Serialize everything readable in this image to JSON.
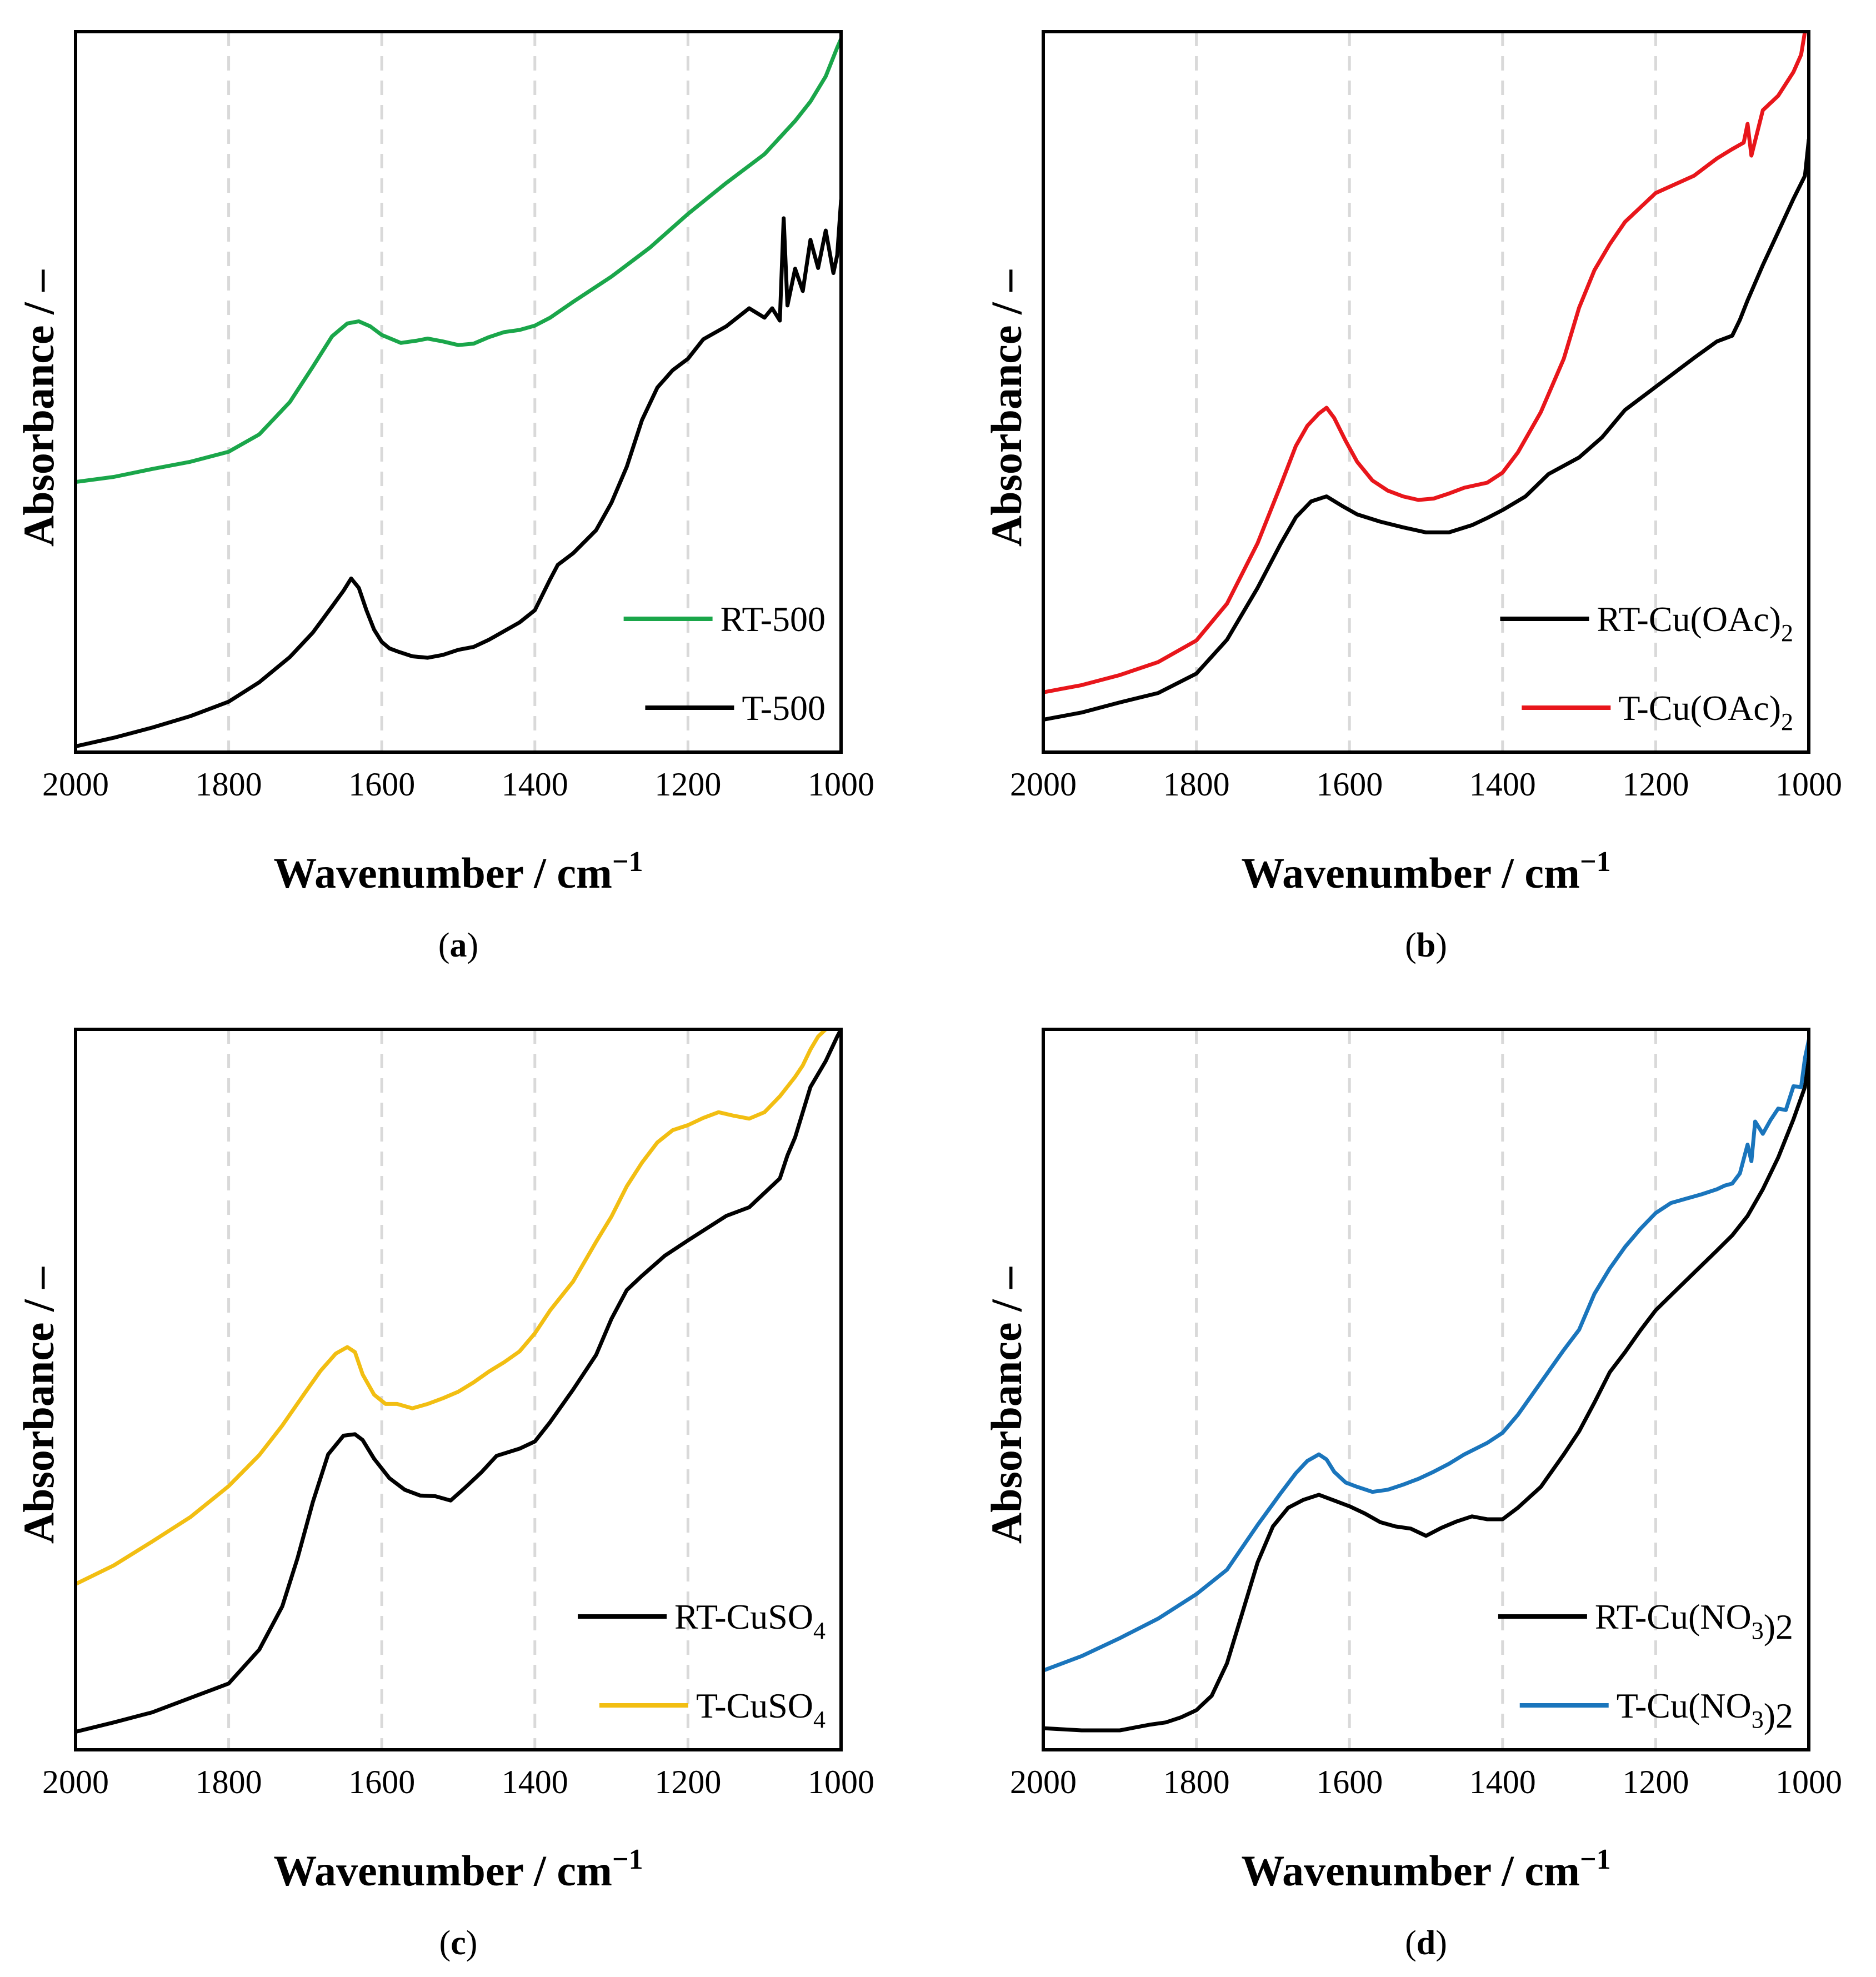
{
  "figure": {
    "xlabel": "Wavenumber / cm",
    "xlabel_sup": "−1",
    "ylabel": "Absorbance / –"
  },
  "chart_data": [
    {
      "type": "line",
      "panel": "a",
      "label_open": "(",
      "label_letter": "a",
      "label_close": ")",
      "xlabel": "Wavenumber / cm−1",
      "ylabel": "Absorbance / –",
      "xlim": [
        2000,
        1000
      ],
      "ylim": [
        0,
        100
      ],
      "xticks": [
        2000,
        1800,
        1600,
        1400,
        1200,
        1000
      ],
      "gridlines_x": [
        1800,
        1600,
        1400,
        1200
      ],
      "legend_position": "bottom-right",
      "series": [
        {
          "name": "RT-500",
          "legend_main": "RT-500",
          "legend_sub": "",
          "legend_tail": "",
          "color": "#1aa64a",
          "x": [
            2000,
            1950,
            1900,
            1850,
            1800,
            1760,
            1720,
            1690,
            1665,
            1645,
            1630,
            1615,
            1600,
            1575,
            1555,
            1540,
            1520,
            1500,
            1480,
            1460,
            1440,
            1420,
            1400,
            1380,
            1350,
            1300,
            1250,
            1200,
            1150,
            1100,
            1060,
            1040,
            1020,
            1005,
            1000
          ],
          "y": [
            37.5,
            38.2,
            39.3,
            40.3,
            41.7,
            44.1,
            48.6,
            53.5,
            57.7,
            59.5,
            59.8,
            59.1,
            57.9,
            56.8,
            57.1,
            57.4,
            57.0,
            56.5,
            56.7,
            57.6,
            58.3,
            58.6,
            59.2,
            60.3,
            62.5,
            66.0,
            70.0,
            74.7,
            79.0,
            83.0,
            87.6,
            90.3,
            93.8,
            97.8,
            99.0
          ]
        },
        {
          "name": "T-500",
          "legend_main": "T-500",
          "legend_sub": "",
          "legend_tail": "",
          "color": "#000000",
          "x": [
            2000,
            1950,
            1900,
            1850,
            1800,
            1760,
            1720,
            1690,
            1665,
            1650,
            1640,
            1630,
            1620,
            1610,
            1600,
            1590,
            1580,
            1560,
            1540,
            1520,
            1500,
            1480,
            1460,
            1440,
            1420,
            1400,
            1380,
            1370,
            1350,
            1320,
            1300,
            1280,
            1260,
            1240,
            1220,
            1200,
            1180,
            1150,
            1120,
            1100,
            1090,
            1080,
            1075,
            1070,
            1060,
            1050,
            1040,
            1030,
            1020,
            1010,
            1005,
            1000
          ],
          "y": [
            0.8,
            2.0,
            3.4,
            5.0,
            7.0,
            9.7,
            13.2,
            16.6,
            20.2,
            22.4,
            24.1,
            22.8,
            19.7,
            17.0,
            15.3,
            14.4,
            14.0,
            13.3,
            13.1,
            13.5,
            14.2,
            14.6,
            15.6,
            16.8,
            18.0,
            19.7,
            24.0,
            26.0,
            27.6,
            30.8,
            34.6,
            39.6,
            46.1,
            50.6,
            53.0,
            54.6,
            57.3,
            59.1,
            61.6,
            60.3,
            61.6,
            59.9,
            74.1,
            62.0,
            67.1,
            64.0,
            71.1,
            67.2,
            72.4,
            66.5,
            69.0,
            76.6
          ]
        }
      ]
    },
    {
      "type": "line",
      "panel": "b",
      "label_open": "(",
      "label_letter": "b",
      "label_close": ")",
      "xlabel": "Wavenumber / cm−1",
      "ylabel": "Absorbance / –",
      "xlim": [
        2000,
        1000
      ],
      "ylim": [
        0,
        100
      ],
      "xticks": [
        2000,
        1800,
        1600,
        1400,
        1200,
        1000
      ],
      "gridlines_x": [
        1800,
        1600,
        1400,
        1200
      ],
      "legend_position": "bottom-right",
      "series": [
        {
          "name": "RT-Cu(OAc)2",
          "legend_main": "RT-Cu(OAc)",
          "legend_sub": "2",
          "legend_tail": "",
          "color": "#000000",
          "x": [
            2000,
            1950,
            1900,
            1850,
            1800,
            1760,
            1720,
            1690,
            1670,
            1650,
            1630,
            1610,
            1590,
            1560,
            1530,
            1500,
            1470,
            1440,
            1420,
            1400,
            1370,
            1340,
            1300,
            1270,
            1240,
            1200,
            1150,
            1120,
            1100,
            1090,
            1080,
            1060,
            1040,
            1020,
            1005,
            1000
          ],
          "y": [
            4.5,
            5.5,
            6.9,
            8.2,
            10.9,
            15.6,
            22.8,
            28.9,
            32.6,
            34.8,
            35.5,
            34.2,
            33.0,
            32.0,
            31.2,
            30.5,
            30.5,
            31.5,
            32.5,
            33.6,
            35.5,
            38.6,
            40.9,
            43.7,
            47.5,
            50.7,
            54.7,
            57.0,
            57.8,
            60.0,
            62.7,
            67.6,
            72.2,
            76.8,
            80.0,
            85.0
          ]
        },
        {
          "name": "T-Cu(OAc)2",
          "legend_main": "T-Cu(OAc)",
          "legend_sub": "2",
          "legend_tail": "",
          "color": "#e8161b",
          "x": [
            2000,
            1950,
            1900,
            1850,
            1800,
            1760,
            1720,
            1690,
            1670,
            1655,
            1640,
            1630,
            1620,
            1605,
            1590,
            1570,
            1550,
            1530,
            1510,
            1490,
            1470,
            1450,
            1420,
            1400,
            1380,
            1350,
            1320,
            1300,
            1280,
            1260,
            1240,
            1200,
            1150,
            1120,
            1100,
            1085,
            1080,
            1075,
            1060,
            1040,
            1020,
            1010,
            1005,
            1000
          ],
          "y": [
            8.3,
            9.3,
            10.7,
            12.5,
            15.5,
            20.6,
            29.0,
            37.0,
            42.5,
            45.3,
            47.0,
            47.8,
            46.4,
            43.2,
            40.3,
            37.7,
            36.3,
            35.5,
            35.0,
            35.2,
            35.9,
            36.7,
            37.4,
            38.8,
            41.6,
            47.2,
            54.6,
            61.7,
            66.9,
            70.5,
            73.6,
            77.6,
            80.0,
            82.4,
            83.7,
            84.6,
            87.2,
            82.8,
            89.1,
            91.1,
            94.4,
            96.8,
            100.0,
            103.0
          ]
        }
      ]
    },
    {
      "type": "line",
      "panel": "c",
      "label_open": "(",
      "label_letter": "c",
      "label_close": ")",
      "xlabel": "Wavenumber / cm−1",
      "ylabel": "Absorbance / –",
      "xlim": [
        2000,
        1000
      ],
      "ylim": [
        0,
        100
      ],
      "xticks": [
        2000,
        1800,
        1600,
        1400,
        1200,
        1000
      ],
      "gridlines_x": [
        1800,
        1600,
        1400,
        1200
      ],
      "legend_position": "bottom-right",
      "series": [
        {
          "name": "RT-CuSO4",
          "legend_main": "RT-CuSO",
          "legend_sub": "4",
          "legend_tail": "",
          "color": "#000000",
          "x": [
            2000,
            1950,
            1900,
            1850,
            1800,
            1760,
            1730,
            1710,
            1690,
            1670,
            1650,
            1635,
            1625,
            1610,
            1590,
            1570,
            1550,
            1530,
            1510,
            1490,
            1470,
            1450,
            1420,
            1400,
            1380,
            1350,
            1320,
            1300,
            1280,
            1260,
            1230,
            1200,
            1150,
            1120,
            1100,
            1080,
            1070,
            1060,
            1040,
            1020,
            1005,
            1000
          ],
          "y": [
            2.5,
            3.8,
            5.2,
            7.2,
            9.2,
            13.9,
            19.9,
            26.6,
            34.4,
            41.0,
            43.6,
            43.8,
            43.0,
            40.4,
            37.7,
            36.1,
            35.3,
            35.2,
            34.6,
            36.5,
            38.5,
            40.8,
            41.8,
            42.8,
            45.5,
            50.0,
            54.8,
            59.8,
            63.8,
            65.8,
            68.6,
            70.7,
            74.1,
            75.3,
            77.3,
            79.3,
            82.5,
            85.0,
            92.0,
            95.6,
            99.0,
            100.0
          ]
        },
        {
          "name": "T-CuSO4",
          "legend_main": "T-CuSO",
          "legend_sub": "4",
          "legend_tail": "",
          "color": "#f2be12",
          "x": [
            2000,
            1950,
            1900,
            1850,
            1800,
            1760,
            1730,
            1700,
            1680,
            1660,
            1645,
            1635,
            1625,
            1610,
            1595,
            1580,
            1560,
            1540,
            1520,
            1500,
            1480,
            1460,
            1440,
            1420,
            1400,
            1380,
            1350,
            1320,
            1300,
            1280,
            1260,
            1240,
            1220,
            1200,
            1180,
            1160,
            1140,
            1120,
            1100,
            1080,
            1060,
            1050,
            1040,
            1030,
            1020,
            1010,
            1000
          ],
          "y": [
            23.0,
            25.6,
            28.9,
            32.3,
            36.6,
            40.9,
            45.0,
            49.6,
            52.6,
            55.0,
            55.9,
            55.2,
            52.1,
            49.3,
            48.0,
            48.0,
            47.4,
            48.0,
            48.8,
            49.7,
            51.0,
            52.5,
            53.8,
            55.3,
            57.8,
            61.0,
            65.0,
            70.5,
            74.0,
            78.2,
            81.5,
            84.3,
            86.0,
            86.7,
            87.7,
            88.5,
            88.0,
            87.6,
            88.5,
            90.7,
            93.4,
            95.0,
            97.2,
            99.0,
            100.0,
            101.0,
            102.0
          ]
        }
      ]
    },
    {
      "type": "line",
      "panel": "d",
      "label_open": "(",
      "label_letter": "d",
      "label_close": ")",
      "xlabel": "Wavenumber / cm−1",
      "ylabel": "Absorbance / –",
      "xlim": [
        2000,
        1000
      ],
      "ylim": [
        0,
        100
      ],
      "xticks": [
        2000,
        1800,
        1600,
        1400,
        1200,
        1000
      ],
      "gridlines_x": [
        1800,
        1600,
        1400,
        1200
      ],
      "legend_position": "bottom-right",
      "series": [
        {
          "name": "RT-Cu(NO3)2",
          "legend_main": "RT-Cu(NO",
          "legend_sub": "3",
          "legend_tail": ")2",
          "color": "#000000",
          "x": [
            2000,
            1950,
            1900,
            1860,
            1840,
            1820,
            1800,
            1780,
            1760,
            1740,
            1720,
            1700,
            1680,
            1660,
            1640,
            1620,
            1600,
            1580,
            1560,
            1540,
            1520,
            1500,
            1480,
            1460,
            1440,
            1420,
            1400,
            1380,
            1350,
            1320,
            1300,
            1280,
            1260,
            1240,
            1220,
            1200,
            1180,
            1150,
            1120,
            1100,
            1080,
            1060,
            1040,
            1020,
            1005,
            1000
          ],
          "y": [
            3.0,
            2.7,
            2.7,
            3.5,
            3.8,
            4.5,
            5.5,
            7.5,
            12.0,
            19.0,
            26.0,
            31.0,
            33.6,
            34.7,
            35.4,
            34.6,
            33.8,
            32.8,
            31.6,
            31.0,
            30.7,
            29.7,
            30.8,
            31.7,
            32.4,
            32.0,
            32.0,
            33.6,
            36.5,
            41.0,
            44.2,
            48.2,
            52.4,
            55.2,
            58.2,
            61.0,
            63.1,
            66.2,
            69.3,
            71.4,
            74.1,
            77.8,
            82.2,
            87.5,
            92.0,
            96.0
          ]
        },
        {
          "name": "T-Cu(NO3)2",
          "legend_main": "T-Cu(NO",
          "legend_sub": "3",
          "legend_tail": ")2",
          "color": "#1a75bc",
          "x": [
            2000,
            1950,
            1900,
            1850,
            1800,
            1760,
            1720,
            1690,
            1670,
            1655,
            1640,
            1630,
            1620,
            1605,
            1590,
            1570,
            1550,
            1530,
            1510,
            1490,
            1470,
            1450,
            1420,
            1400,
            1380,
            1350,
            1320,
            1300,
            1280,
            1260,
            1240,
            1220,
            1200,
            1180,
            1160,
            1140,
            1120,
            1110,
            1100,
            1090,
            1080,
            1075,
            1070,
            1060,
            1050,
            1040,
            1030,
            1020,
            1010,
            1005,
            1000
          ],
          "y": [
            11.0,
            13.0,
            15.5,
            18.2,
            21.6,
            25.0,
            31.2,
            35.6,
            38.4,
            40.1,
            41.0,
            40.3,
            38.6,
            37.1,
            36.5,
            35.8,
            36.1,
            36.8,
            37.6,
            38.6,
            39.7,
            41.0,
            42.6,
            44.0,
            46.5,
            51.0,
            55.5,
            58.3,
            63.3,
            66.8,
            69.8,
            72.3,
            74.5,
            75.9,
            76.5,
            77.1,
            77.8,
            78.3,
            78.6,
            80.0,
            84.0,
            81.7,
            87.2,
            85.5,
            87.4,
            89.0,
            88.8,
            92.1,
            92.0,
            96.0,
            98.5
          ]
        }
      ]
    }
  ]
}
